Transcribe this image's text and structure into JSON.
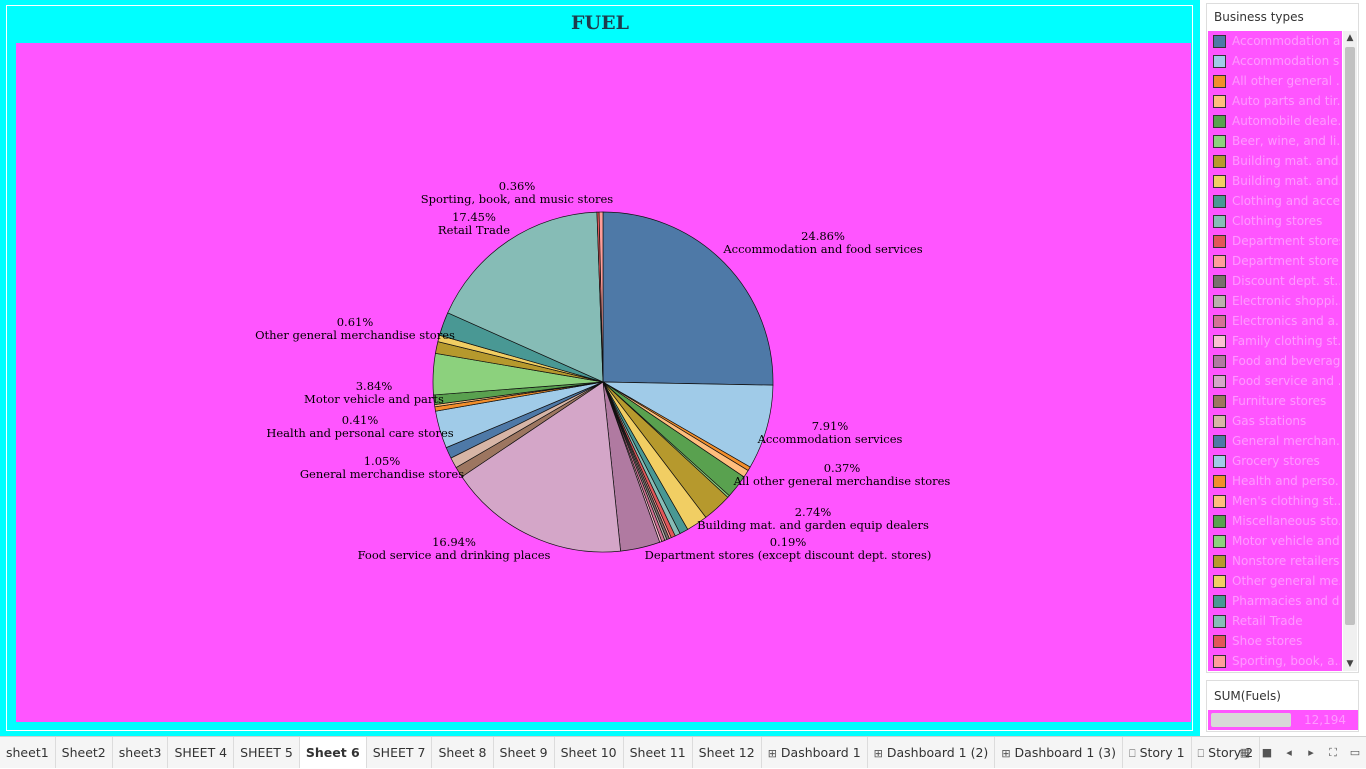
{
  "chart_title": "FUEL",
  "legend": {
    "title": "Business types",
    "items": [
      {
        "label": "Accommodation a...",
        "color": "#4e79a7"
      },
      {
        "label": "Accommodation s...",
        "color": "#a0cbe8"
      },
      {
        "label": "All other general ...",
        "color": "#f28e2b"
      },
      {
        "label": "Auto parts and tir...",
        "color": "#ffbe7d"
      },
      {
        "label": "Automobile deale...",
        "color": "#59a14f"
      },
      {
        "label": "Beer, wine, and li...",
        "color": "#8cd17d"
      },
      {
        "label": "Building mat. and...",
        "color": "#b6992d"
      },
      {
        "label": "Building mat. and...",
        "color": "#f1ce63"
      },
      {
        "label": "Clothing and acce...",
        "color": "#499894"
      },
      {
        "label": "Clothing stores",
        "color": "#86bcb6"
      },
      {
        "label": "Department stores",
        "color": "#e15759"
      },
      {
        "label": "Department store...",
        "color": "#ff9d9a"
      },
      {
        "label": "Discount dept. st...",
        "color": "#79706e"
      },
      {
        "label": "Electronic shoppi...",
        "color": "#bab0ac"
      },
      {
        "label": "Electronics and a...",
        "color": "#d37295"
      },
      {
        "label": "Family clothing st...",
        "color": "#fabfd2"
      },
      {
        "label": "Food and beverag...",
        "color": "#b07aa1"
      },
      {
        "label": "Food service and ...",
        "color": "#d4a6c8"
      },
      {
        "label": "Furniture stores",
        "color": "#9d7660"
      },
      {
        "label": "Gas stations",
        "color": "#d7b5a6"
      },
      {
        "label": "General merchan...",
        "color": "#4e79a7"
      },
      {
        "label": "Grocery stores",
        "color": "#a0cbe8"
      },
      {
        "label": "Health and perso...",
        "color": "#f28e2b"
      },
      {
        "label": "Men's clothing st...",
        "color": "#ffbe7d"
      },
      {
        "label": "Miscellaneous sto...",
        "color": "#59a14f"
      },
      {
        "label": "Motor vehicle and...",
        "color": "#8cd17d"
      },
      {
        "label": "Nonstore retailers",
        "color": "#b6992d"
      },
      {
        "label": "Other general me...",
        "color": "#f1ce63"
      },
      {
        "label": "Pharmacies and d...",
        "color": "#499894"
      },
      {
        "label": "Retail Trade",
        "color": "#86bcb6"
      },
      {
        "label": "Shoe stores",
        "color": "#e15759"
      },
      {
        "label": "Sporting, book, a...",
        "color": "#ff9d9a"
      }
    ]
  },
  "size_legend": {
    "title": "SUM(Fuels)",
    "value": "12,194"
  },
  "tabs": [
    {
      "label": "sheet1",
      "icon": ""
    },
    {
      "label": "Sheet2",
      "icon": ""
    },
    {
      "label": "sheet3",
      "icon": ""
    },
    {
      "label": "SHEET 4",
      "icon": ""
    },
    {
      "label": "SHEET 5",
      "icon": ""
    },
    {
      "label": "Sheet 6",
      "icon": "",
      "active": true
    },
    {
      "label": "SHEET 7",
      "icon": ""
    },
    {
      "label": "Sheet 8",
      "icon": ""
    },
    {
      "label": "Sheet 9",
      "icon": ""
    },
    {
      "label": "Sheet 10",
      "icon": ""
    },
    {
      "label": "Sheet 11",
      "icon": ""
    },
    {
      "label": "Sheet 12",
      "icon": ""
    },
    {
      "label": "Dashboard 1",
      "icon": "dashboard-icon"
    },
    {
      "label": "Dashboard 1 (2)",
      "icon": "dashboard-icon"
    },
    {
      "label": "Dashboard 1 (3)",
      "icon": "dashboard-icon"
    },
    {
      "label": "Story 1",
      "icon": "story-icon"
    },
    {
      "label": "Story 2",
      "icon": "story-icon"
    }
  ],
  "chart_data": {
    "type": "pie",
    "title": "FUEL",
    "slices": [
      {
        "label": "Accommodation and food services",
        "value": 24.86,
        "pct": "24.86%",
        "color": "#4e79a7",
        "shown": true
      },
      {
        "label": "Accommodation services",
        "value": 7.91,
        "pct": "7.91%",
        "color": "#a0cbe8",
        "shown": true
      },
      {
        "label": "All other general merchandise stores",
        "value": 0.37,
        "pct": "0.37%",
        "color": "#f28e2b",
        "shown": true
      },
      {
        "label": "Auto parts and tire stores",
        "value": 0.7,
        "color": "#ffbe7d",
        "shown": false
      },
      {
        "label": "Automobile dealers",
        "value": 2.2,
        "color": "#59a14f",
        "shown": false
      },
      {
        "label": "Beer, wine, and liquor stores",
        "value": 0.2,
        "color": "#8cd17d",
        "shown": false
      },
      {
        "label": "Building mat. and garden equip dealers",
        "value": 2.74,
        "pct": "2.74%",
        "color": "#b6992d",
        "shown": true
      },
      {
        "label": "Building mat. and supplies dealers",
        "value": 2.0,
        "color": "#f1ce63",
        "shown": false
      },
      {
        "label": "Clothing and accessories stores",
        "value": 0.8,
        "color": "#499894",
        "shown": false
      },
      {
        "label": "Clothing stores",
        "value": 0.5,
        "color": "#86bcb6",
        "shown": false
      },
      {
        "label": "Department stores",
        "value": 0.4,
        "color": "#e15759",
        "shown": false
      },
      {
        "label": "Department stores (except discount dept. stores)",
        "value": 0.19,
        "pct": "0.19%",
        "color": "#ff9d9a",
        "shown": true
      },
      {
        "label": "Discount dept. stores",
        "value": 0.25,
        "color": "#79706e",
        "shown": false
      },
      {
        "label": "Electronic shopping",
        "value": 0.2,
        "color": "#bab0ac",
        "shown": false
      },
      {
        "label": "Electronics and appliance stores",
        "value": 0.3,
        "color": "#d37295",
        "shown": false
      },
      {
        "label": "Family clothing stores",
        "value": 0.2,
        "color": "#fabfd2",
        "shown": false
      },
      {
        "label": "Food and beverage stores",
        "value": 3.7,
        "color": "#b07aa1",
        "shown": false
      },
      {
        "label": "Food service and drinking places",
        "value": 16.94,
        "pct": "16.94%",
        "color": "#d4a6c8",
        "shown": true
      },
      {
        "label": "Furniture stores",
        "value": 1.0,
        "color": "#9d7660",
        "shown": false
      },
      {
        "label": "Gas stations",
        "value": 1.0,
        "color": "#d7b5a6",
        "shown": false
      },
      {
        "label": "General merchandise stores",
        "value": 1.05,
        "pct": "1.05%",
        "color": "#4e79a7",
        "shown": true
      },
      {
        "label": "Grocery stores",
        "value": 3.5,
        "color": "#a0cbe8",
        "shown": false
      },
      {
        "label": "Health and personal care stores",
        "value": 0.41,
        "pct": "0.41%",
        "color": "#f28e2b",
        "shown": true
      },
      {
        "label": "Men's clothing stores",
        "value": 0.2,
        "color": "#ffbe7d",
        "shown": false
      },
      {
        "label": "Miscellaneous store retailers",
        "value": 0.9,
        "color": "#59a14f",
        "shown": false
      },
      {
        "label": "Motor vehicle and parts",
        "value": 3.84,
        "pct": "3.84%",
        "color": "#8cd17d",
        "shown": true
      },
      {
        "label": "Nonstore retailers",
        "value": 1.1,
        "color": "#b6992d",
        "shown": false
      },
      {
        "label": "Other general merchandise stores",
        "value": 0.61,
        "pct": "0.61%",
        "color": "#f1ce63",
        "shown": true
      },
      {
        "label": "Pharmacies and drug stores",
        "value": 2.2,
        "color": "#499894",
        "shown": false
      },
      {
        "label": "Retail Trade",
        "value": 17.45,
        "pct": "17.45%",
        "color": "#86bcb6",
        "shown": true
      },
      {
        "label": "Shoe stores",
        "value": 0.2,
        "color": "#e15759",
        "shown": false
      },
      {
        "label": "Sporting, book, and  music stores",
        "value": 0.36,
        "pct": "0.36%",
        "color": "#ff9d9a",
        "shown": true
      }
    ]
  }
}
